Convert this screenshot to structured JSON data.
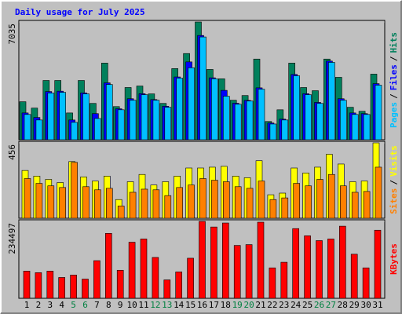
{
  "chart_data": {
    "type": "bar",
    "title": "Daily usage for July 2025",
    "categories": [
      "1",
      "2",
      "3",
      "4",
      "5",
      "6",
      "7",
      "8",
      "9",
      "10",
      "11",
      "12",
      "13",
      "14",
      "15",
      "16",
      "17",
      "18",
      "19",
      "20",
      "21",
      "22",
      "23",
      "24",
      "25",
      "26",
      "27",
      "28",
      "29",
      "30",
      "31"
    ],
    "category_colors": [
      "#000",
      "#000",
      "#000",
      "#000",
      "#008040",
      "#008040",
      "#000",
      "#000",
      "#000",
      "#000",
      "#000",
      "#008040",
      "#008040",
      "#000",
      "#000",
      "#000",
      "#000",
      "#000",
      "#008040",
      "#008040",
      "#000",
      "#000",
      "#000",
      "#000",
      "#000",
      "#008040",
      "#008040",
      "#000",
      "#000",
      "#000",
      "#000"
    ],
    "separator": "/",
    "panels": [
      {
        "ylim": [
          0,
          7035
        ],
        "yticks": [
          7035
        ],
        "series": [
          {
            "name": "Hits",
            "color": "#00805c",
            "values": [
              2270,
              1890,
              3540,
              3540,
              1600,
              3540,
              2170,
              4580,
              1980,
              3120,
              3210,
              2740,
              2170,
              4250,
              5150,
              7035,
              4200,
              3640,
              2360,
              2640,
              4820,
              1090,
              1790,
              4580,
              3120,
              2930,
              4820,
              3730,
              1940,
              1700,
              3920
            ]
          },
          {
            "name": "Files",
            "color": "#0000ff",
            "values": [
              1600,
              1330,
              2880,
              2900,
              1180,
              2800,
              1560,
              3400,
              1850,
              2450,
              2750,
              2400,
              2000,
              3750,
              4650,
              6230,
              3700,
              2950,
              2180,
              2350,
              3100,
              1000,
              1230,
              3900,
              2750,
              2230,
              4700,
              2450,
              1600,
              1560,
              3350
            ]
          },
          {
            "name": "Pages",
            "color": "#00c0ff",
            "values": [
              1510,
              1180,
              2790,
              2830,
              1040,
              2740,
              1270,
              3300,
              1790,
              2360,
              2690,
              2360,
              1940,
              3680,
              4300,
              6140,
              3640,
              2600,
              2120,
              2310,
              3020,
              940,
              1180,
              3820,
              2690,
              2170,
              4620,
              2360,
              1510,
              1510,
              3260
            ]
          }
        ]
      },
      {
        "ylim": [
          0,
          456
        ],
        "yticks": [
          456
        ],
        "series": [
          {
            "name": "Visits",
            "color": "#ffff00",
            "values": [
              289,
              255,
              235,
              216,
              343,
              250,
              225,
              255,
              113,
              221,
              265,
              201,
              221,
              255,
              304,
              304,
              309,
              314,
              255,
              245,
              348,
              142,
              152,
              304,
              274,
              309,
              387,
              328,
              221,
              225,
              456
            ]
          },
          {
            "name": "Sites",
            "color": "#ff8000",
            "values": [
              240,
              211,
              196,
              186,
              338,
              191,
              172,
              181,
              74,
              157,
              176,
              172,
              137,
              186,
              201,
              240,
              230,
              221,
              191,
              181,
              225,
              113,
              123,
              211,
              196,
              235,
              265,
              196,
              157,
              162,
              309
            ]
          }
        ]
      },
      {
        "ylim": [
          0,
          234497
        ],
        "yticks": [
          234497
        ],
        "series": [
          {
            "name": "KBytes",
            "color": "#ff0000",
            "values": [
              83000,
              78200,
              83000,
              63500,
              70900,
              58600,
              114800,
              197900,
              85500,
              171000,
              180800,
              124600,
              56200,
              80600,
              122200,
              234497,
              217400,
              229600,
              161200,
              163700,
              232100,
              92800,
              109900,
              212500,
              190600,
              175900,
              180800,
              219900,
              134400,
              92800,
              207600
            ]
          }
        ]
      }
    ]
  }
}
